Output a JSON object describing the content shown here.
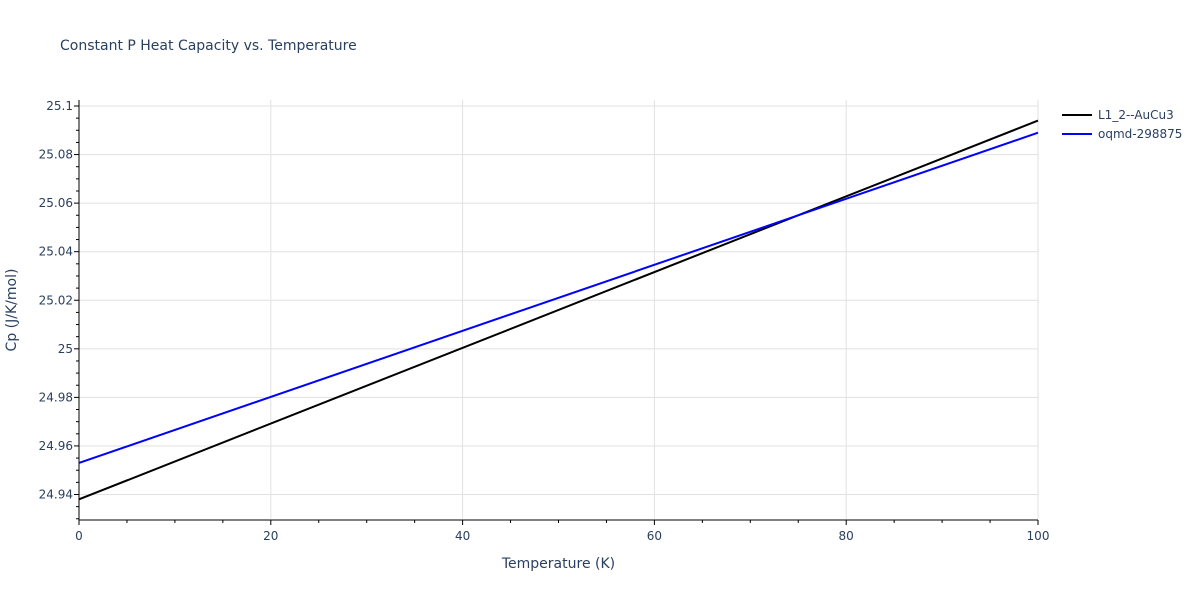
{
  "chart_data": {
    "type": "line",
    "title": "Constant P Heat Capacity vs. Temperature",
    "xlabel": "Temperature (K)",
    "ylabel": "Cp (J/K/mol)",
    "xlim": [
      0,
      100
    ],
    "ylim": [
      24.93,
      25.1
    ],
    "x_ticks": [
      0,
      20,
      40,
      60,
      80,
      100
    ],
    "y_ticks": [
      24.94,
      24.96,
      24.98,
      25,
      25.02,
      25.04,
      25.06,
      25.08,
      25.1
    ],
    "y_tick_labels": [
      "24.94",
      "24.96",
      "24.98",
      "25",
      "25.02",
      "25.04",
      "25.06",
      "25.08",
      "25.1"
    ],
    "grid": true,
    "legend_position": "right",
    "series": [
      {
        "name": "L1_2--AuCu3",
        "color": "#000000",
        "x": [
          0,
          100
        ],
        "values": [
          24.938,
          25.094
        ]
      },
      {
        "name": "oqmd-298875",
        "color": "#0000ff",
        "x": [
          0,
          100
        ],
        "values": [
          24.953,
          25.089
        ]
      }
    ]
  }
}
